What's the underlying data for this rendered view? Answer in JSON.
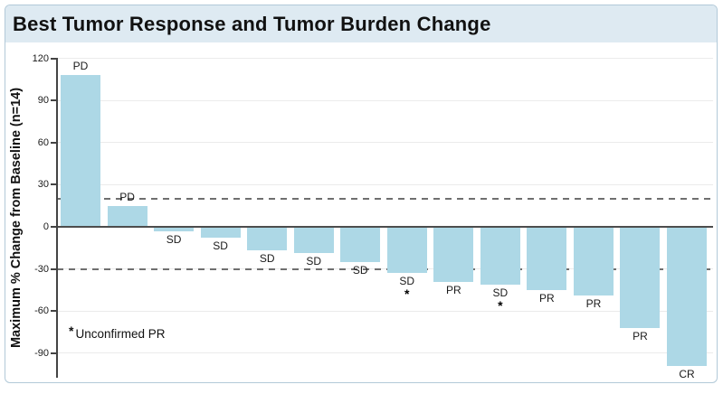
{
  "header": {
    "title": "Best Tumor Response and Tumor Burden Change"
  },
  "chart_data": {
    "type": "bar",
    "subtype": "waterfall",
    "title": "Best Tumor Response and Tumor Burden Change",
    "xlabel": "",
    "ylabel": "Maximum % Change from Baseline (n=14)",
    "ylim": [
      -110,
      120
    ],
    "yticks": [
      120,
      90,
      60,
      30,
      0,
      -30,
      -60,
      -90
    ],
    "grid": true,
    "legend": "none",
    "reference_lines": [
      {
        "y": 20,
        "style": "dashed"
      },
      {
        "y": -30,
        "style": "dashed"
      }
    ],
    "bars": [
      {
        "label": "PD",
        "value": 108,
        "unconfirmed": false
      },
      {
        "label": "PD",
        "value": 15,
        "unconfirmed": false
      },
      {
        "label": "SD",
        "value": -3,
        "unconfirmed": false
      },
      {
        "label": "SD",
        "value": -8,
        "unconfirmed": false
      },
      {
        "label": "SD",
        "value": -17,
        "unconfirmed": false
      },
      {
        "label": "SD",
        "value": -19,
        "unconfirmed": false
      },
      {
        "label": "SD",
        "value": -25,
        "unconfirmed": false
      },
      {
        "label": "SD",
        "value": -33,
        "unconfirmed": true
      },
      {
        "label": "PR",
        "value": -39,
        "unconfirmed": false
      },
      {
        "label": "SD",
        "value": -41,
        "unconfirmed": true
      },
      {
        "label": "PR",
        "value": -45,
        "unconfirmed": false
      },
      {
        "label": "PR",
        "value": -49,
        "unconfirmed": false
      },
      {
        "label": "PR",
        "value": -72,
        "unconfirmed": false
      },
      {
        "label": "CR",
        "value": -99,
        "unconfirmed": false
      }
    ],
    "asterisk_marker": "*",
    "footnote_marker": "*",
    "footnote_text": "Unconfirmed PR",
    "colors": {
      "bar_fill": "#ADD8E6",
      "header_bg": "#DEEAF2",
      "zero_line": "#4D4D4D",
      "dashed_line": "#6F6F6F",
      "card_border": "#B2C9D8",
      "gridline": "#EBEBEB",
      "text": "#111111"
    }
  }
}
